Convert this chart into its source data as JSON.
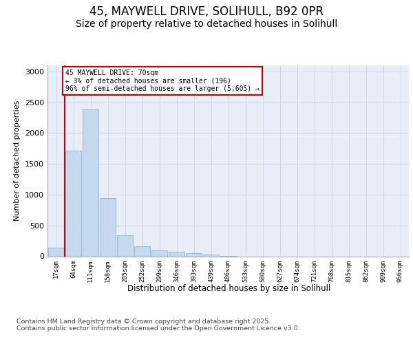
{
  "title_line1": "45, MAYWELL DRIVE, SOLIHULL, B92 0PR",
  "title_line2": "Size of property relative to detached houses in Solihull",
  "xlabel": "Distribution of detached houses by size in Solihull",
  "ylabel": "Number of detached properties",
  "categories": [
    "17sqm",
    "64sqm",
    "111sqm",
    "158sqm",
    "205sqm",
    "252sqm",
    "299sqm",
    "346sqm",
    "393sqm",
    "439sqm",
    "486sqm",
    "533sqm",
    "580sqm",
    "627sqm",
    "674sqm",
    "721sqm",
    "768sqm",
    "815sqm",
    "862sqm",
    "909sqm",
    "956sqm"
  ],
  "values": [
    135,
    1720,
    2390,
    940,
    340,
    165,
    90,
    70,
    50,
    25,
    5,
    0,
    0,
    0,
    0,
    0,
    0,
    0,
    0,
    0,
    0
  ],
  "bar_color": "#c5d8ee",
  "bar_edge_color": "#7aaecc",
  "vline_color": "#cc0000",
  "annotation_text": "45 MAYWELL DRIVE: 70sqm\n← 3% of detached houses are smaller (196)\n96% of semi-detached houses are larger (5,605) →",
  "annotation_box_color": "#ffffff",
  "annotation_box_edge": "#cc0000",
  "grid_color": "#ccd8ea",
  "background_color": "#e8eef8",
  "ylim": [
    0,
    3100
  ],
  "yticks": [
    0,
    500,
    1000,
    1500,
    2000,
    2500,
    3000
  ],
  "footer_text": "Contains HM Land Registry data © Crown copyright and database right 2025.\nContains public sector information licensed under the Open Government Licence v3.0."
}
